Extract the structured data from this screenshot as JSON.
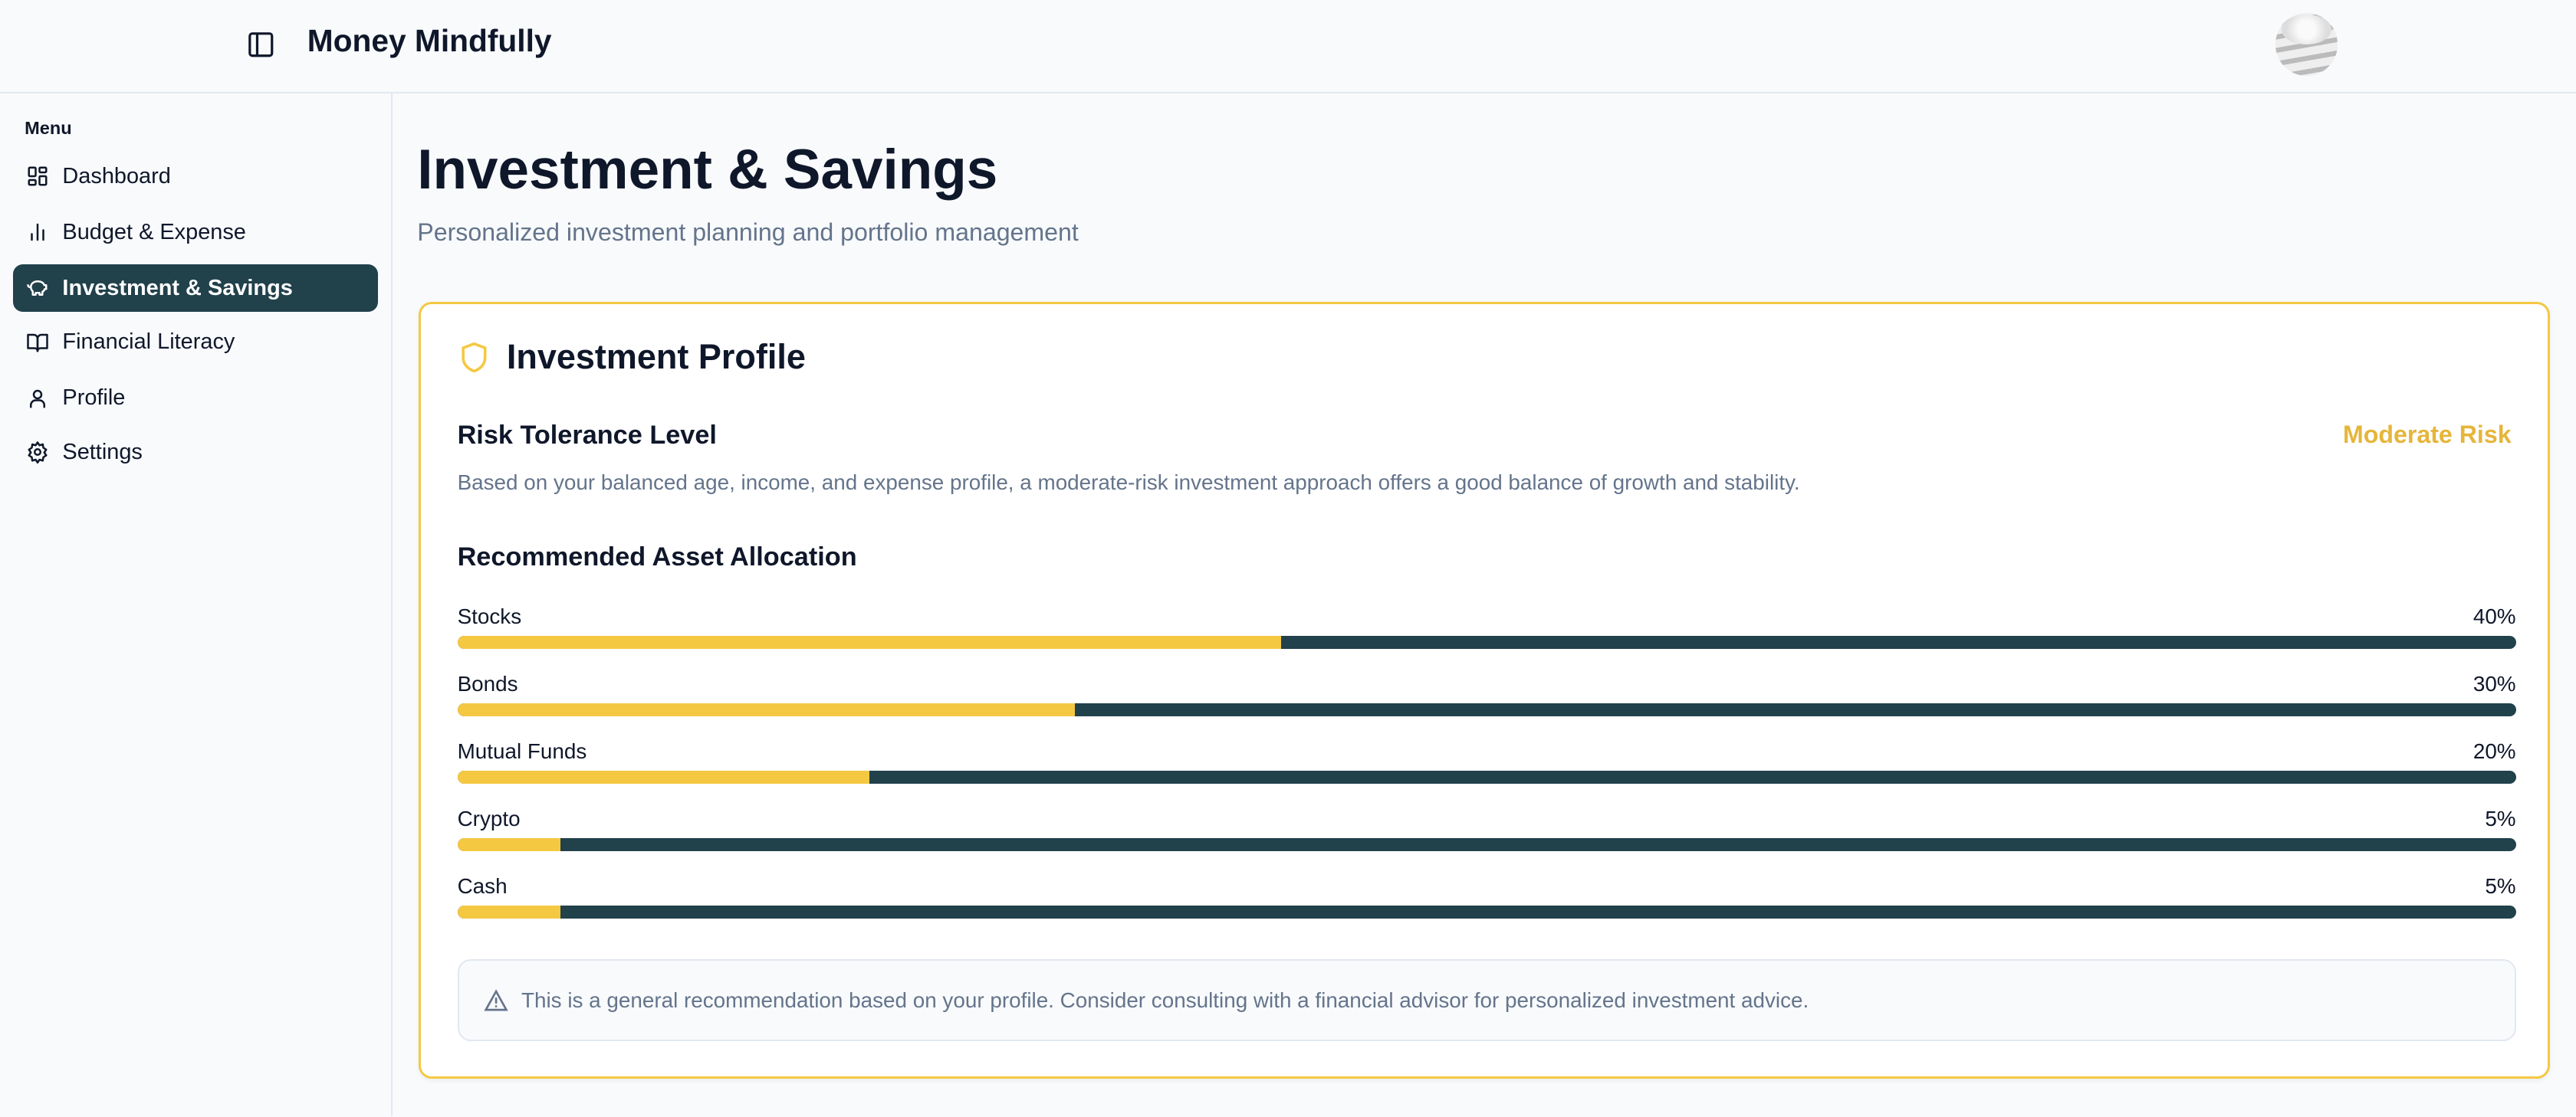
{
  "header": {
    "title": "Money Mindfully"
  },
  "sidebar": {
    "menu_label": "Menu",
    "items": [
      {
        "label": "Dashboard",
        "icon": "layout-dashboard-icon"
      },
      {
        "label": "Budget & Expense",
        "icon": "bar-chart-icon"
      },
      {
        "label": "Investment & Savings",
        "icon": "piggy-bank-icon",
        "active": true
      },
      {
        "label": "Financial Literacy",
        "icon": "book-open-icon"
      },
      {
        "label": "Profile",
        "icon": "user-icon"
      },
      {
        "label": "Settings",
        "icon": "gear-icon"
      }
    ]
  },
  "main": {
    "title": "Investment & Savings",
    "subtitle": "Personalized investment planning and portfolio management",
    "card": {
      "title": "Investment Profile",
      "risk_heading": "Risk Tolerance Level",
      "risk_value": "Moderate Risk",
      "risk_description": "Based on your balanced age, income, and expense profile, a moderate-risk investment approach offers a good balance of growth and stability.",
      "allocation_heading": "Recommended Asset Allocation",
      "allocations": [
        {
          "label": "Stocks",
          "percent_text": "40%",
          "percent": 40
        },
        {
          "label": "Bonds",
          "percent_text": "30%",
          "percent": 30
        },
        {
          "label": "Mutual Funds",
          "percent_text": "20%",
          "percent": 20
        },
        {
          "label": "Crypto",
          "percent_text": "5%",
          "percent": 5
        },
        {
          "label": "Cash",
          "percent_text": "5%",
          "percent": 5
        }
      ],
      "note": "This is a general recommendation based on your profile. Consider consulting with a financial advisor for personalized investment advice."
    }
  },
  "colors": {
    "accent": "#f5c842",
    "primary": "#21414b",
    "risk": "#e6b53a"
  }
}
